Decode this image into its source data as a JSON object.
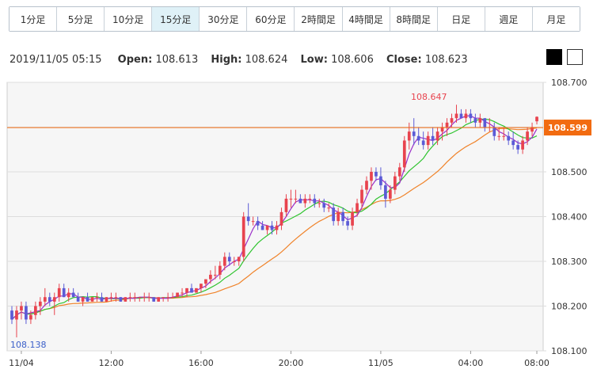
{
  "timeframe_tabs": [
    {
      "label": "1分足",
      "active": false
    },
    {
      "label": "5分足",
      "active": false
    },
    {
      "label": "10分足",
      "active": false
    },
    {
      "label": "15分足",
      "active": true
    },
    {
      "label": "30分足",
      "active": false
    },
    {
      "label": "60分足",
      "active": false
    },
    {
      "label": "2時間足",
      "active": false
    },
    {
      "label": "4時間足",
      "active": false
    },
    {
      "label": "8時間足",
      "active": false
    },
    {
      "label": "日足",
      "active": false
    },
    {
      "label": "週足",
      "active": false
    },
    {
      "label": "月足",
      "active": false
    }
  ],
  "ohlc_info": {
    "timestamp": "2019/11/05 05:15",
    "open_label": "Open:",
    "open": "108.613",
    "high_label": "High:",
    "high": "108.624",
    "low_label": "Low:",
    "low": "108.606",
    "close_label": "Close:",
    "close": "108.623"
  },
  "theme_buttons": [
    "dark",
    "light"
  ],
  "colors": {
    "up_candle": "#e8434e",
    "down_candle": "#5b5bd6",
    "ma_short": "#9b2fc9",
    "ma_mid": "#2fc42f",
    "ma_long": "#f0832a",
    "current_price": "#f26b10",
    "high_marker": "#e8434e",
    "low_marker": "#3b5fc9",
    "grid": "#dddddd",
    "plot_bg": "#f6f6f6"
  },
  "chart_data": {
    "type": "candlestick",
    "symbol_interval": "15分足",
    "ylim": [
      108.1,
      108.7
    ],
    "yticks": [
      "108.700",
      "108.600",
      "108.500",
      "108.400",
      "108.300",
      "108.200",
      "108.100"
    ],
    "xticks": [
      "11/04",
      "12:00",
      "16:00",
      "20:00",
      "11/05",
      "04:00",
      "08:00"
    ],
    "current_price": "108.599",
    "high_marker": "108.647",
    "low_marker": "108.138",
    "candles": [
      [
        108.19,
        108.2,
        108.16,
        108.17
      ],
      [
        108.17,
        108.2,
        108.13,
        108.19
      ],
      [
        108.19,
        108.21,
        108.17,
        108.2
      ],
      [
        108.2,
        108.21,
        108.16,
        108.17
      ],
      [
        108.17,
        108.19,
        108.16,
        108.18
      ],
      [
        108.18,
        108.21,
        108.17,
        108.2
      ],
      [
        108.2,
        108.22,
        108.18,
        108.21
      ],
      [
        108.21,
        108.24,
        108.2,
        108.22
      ],
      [
        108.22,
        108.23,
        108.2,
        108.21
      ],
      [
        108.21,
        108.23,
        108.18,
        108.22
      ],
      [
        108.22,
        108.25,
        108.21,
        108.24
      ],
      [
        108.24,
        108.25,
        108.22,
        108.22
      ],
      [
        108.22,
        108.24,
        108.21,
        108.23
      ],
      [
        108.23,
        108.24,
        108.22,
        108.22
      ],
      [
        108.22,
        108.23,
        108.21,
        108.21
      ],
      [
        108.21,
        108.22,
        108.2,
        108.22
      ],
      [
        108.22,
        108.23,
        108.21,
        108.21
      ],
      [
        108.21,
        108.22,
        108.21,
        108.22
      ],
      [
        108.22,
        108.23,
        108.21,
        108.22
      ],
      [
        108.22,
        108.23,
        108.21,
        108.21
      ],
      [
        108.21,
        108.22,
        108.21,
        108.22
      ],
      [
        108.22,
        108.23,
        108.21,
        108.22
      ],
      [
        108.22,
        108.23,
        108.21,
        108.22
      ],
      [
        108.22,
        108.22,
        108.21,
        108.21
      ],
      [
        108.21,
        108.22,
        108.21,
        108.22
      ],
      [
        108.22,
        108.23,
        108.21,
        108.22
      ],
      [
        108.22,
        108.23,
        108.21,
        108.22
      ],
      [
        108.22,
        108.22,
        108.21,
        108.22
      ],
      [
        108.22,
        108.23,
        108.21,
        108.22
      ],
      [
        108.22,
        108.23,
        108.21,
        108.22
      ],
      [
        108.22,
        108.22,
        108.21,
        108.21
      ],
      [
        108.21,
        108.22,
        108.21,
        108.22
      ],
      [
        108.22,
        108.22,
        108.21,
        108.22
      ],
      [
        108.22,
        108.23,
        108.21,
        108.22
      ],
      [
        108.22,
        108.23,
        108.22,
        108.22
      ],
      [
        108.22,
        108.23,
        108.22,
        108.23
      ],
      [
        108.23,
        108.24,
        108.22,
        108.23
      ],
      [
        108.23,
        108.24,
        108.22,
        108.24
      ],
      [
        108.24,
        108.25,
        108.23,
        108.23
      ],
      [
        108.23,
        108.24,
        108.23,
        108.24
      ],
      [
        108.24,
        108.25,
        108.23,
        108.25
      ],
      [
        108.25,
        108.26,
        108.24,
        108.26
      ],
      [
        108.26,
        108.28,
        108.25,
        108.27
      ],
      [
        108.27,
        108.29,
        108.26,
        108.27
      ],
      [
        108.27,
        108.3,
        108.26,
        108.29
      ],
      [
        108.29,
        108.32,
        108.28,
        108.31
      ],
      [
        108.31,
        108.32,
        108.29,
        108.3
      ],
      [
        108.3,
        108.31,
        108.29,
        108.3
      ],
      [
        108.3,
        108.31,
        108.29,
        108.31
      ],
      [
        108.31,
        108.41,
        108.3,
        108.4
      ],
      [
        108.4,
        108.43,
        108.38,
        108.39
      ],
      [
        108.39,
        108.4,
        108.38,
        108.39
      ],
      [
        108.39,
        108.4,
        108.37,
        108.38
      ],
      [
        108.38,
        108.39,
        108.37,
        108.37
      ],
      [
        108.37,
        108.38,
        108.36,
        108.38
      ],
      [
        108.38,
        108.39,
        108.36,
        108.37
      ],
      [
        108.37,
        108.39,
        108.36,
        108.38
      ],
      [
        108.38,
        108.42,
        108.37,
        108.41
      ],
      [
        108.41,
        108.45,
        108.4,
        108.44
      ],
      [
        108.44,
        108.46,
        108.42,
        108.44
      ],
      [
        108.44,
        108.46,
        108.43,
        108.44
      ],
      [
        108.44,
        108.45,
        108.43,
        108.43
      ],
      [
        108.43,
        108.45,
        108.42,
        108.44
      ],
      [
        108.44,
        108.45,
        108.43,
        108.44
      ],
      [
        108.44,
        108.45,
        108.42,
        108.43
      ],
      [
        108.43,
        108.44,
        108.42,
        108.43
      ],
      [
        108.43,
        108.44,
        108.41,
        108.42
      ],
      [
        108.42,
        108.43,
        108.41,
        108.42
      ],
      [
        108.42,
        108.43,
        108.38,
        108.39
      ],
      [
        108.39,
        108.42,
        108.38,
        108.41
      ],
      [
        108.41,
        108.42,
        108.38,
        108.39
      ],
      [
        108.39,
        108.4,
        108.37,
        108.38
      ],
      [
        108.38,
        108.42,
        108.37,
        108.41
      ],
      [
        108.41,
        108.44,
        108.4,
        108.43
      ],
      [
        108.43,
        108.47,
        108.42,
        108.46
      ],
      [
        108.46,
        108.49,
        108.45,
        108.48
      ],
      [
        108.48,
        108.51,
        108.46,
        108.5
      ],
      [
        108.5,
        108.51,
        108.48,
        108.49
      ],
      [
        108.49,
        108.51,
        108.46,
        108.47
      ],
      [
        108.47,
        108.48,
        108.42,
        108.44
      ],
      [
        108.44,
        108.47,
        108.43,
        108.46
      ],
      [
        108.46,
        108.5,
        108.45,
        108.49
      ],
      [
        108.49,
        108.52,
        108.48,
        108.51
      ],
      [
        108.51,
        108.58,
        108.5,
        108.57
      ],
      [
        108.57,
        108.61,
        108.55,
        108.59
      ],
      [
        108.59,
        108.62,
        108.56,
        108.58
      ],
      [
        108.58,
        108.6,
        108.56,
        108.57
      ],
      [
        108.57,
        108.59,
        108.55,
        108.56
      ],
      [
        108.56,
        108.59,
        108.55,
        108.58
      ],
      [
        108.58,
        108.6,
        108.56,
        108.57
      ],
      [
        108.57,
        108.6,
        108.56,
        108.59
      ],
      [
        108.59,
        108.61,
        108.57,
        108.6
      ],
      [
        108.6,
        108.62,
        108.58,
        108.61
      ],
      [
        108.61,
        108.63,
        108.6,
        108.62
      ],
      [
        108.62,
        108.65,
        108.61,
        108.63
      ],
      [
        108.63,
        108.64,
        108.62,
        108.62
      ],
      [
        108.62,
        108.64,
        108.61,
        108.63
      ],
      [
        108.63,
        108.64,
        108.61,
        108.62
      ],
      [
        108.62,
        108.63,
        108.6,
        108.61
      ],
      [
        108.61,
        108.63,
        108.6,
        108.62
      ],
      [
        108.62,
        108.62,
        108.59,
        108.6
      ],
      [
        108.6,
        108.62,
        108.59,
        108.6
      ],
      [
        108.6,
        108.61,
        108.57,
        108.58
      ],
      [
        108.58,
        108.6,
        108.57,
        108.58
      ],
      [
        108.58,
        108.6,
        108.57,
        108.58
      ],
      [
        108.58,
        108.59,
        108.56,
        108.57
      ],
      [
        108.57,
        108.59,
        108.55,
        108.56
      ],
      [
        108.56,
        108.57,
        108.54,
        108.55
      ],
      [
        108.55,
        108.58,
        108.54,
        108.57
      ],
      [
        108.57,
        108.6,
        108.56,
        108.59
      ],
      [
        108.59,
        108.61,
        108.58,
        108.6
      ],
      [
        108.613,
        108.624,
        108.606,
        108.623
      ]
    ]
  }
}
